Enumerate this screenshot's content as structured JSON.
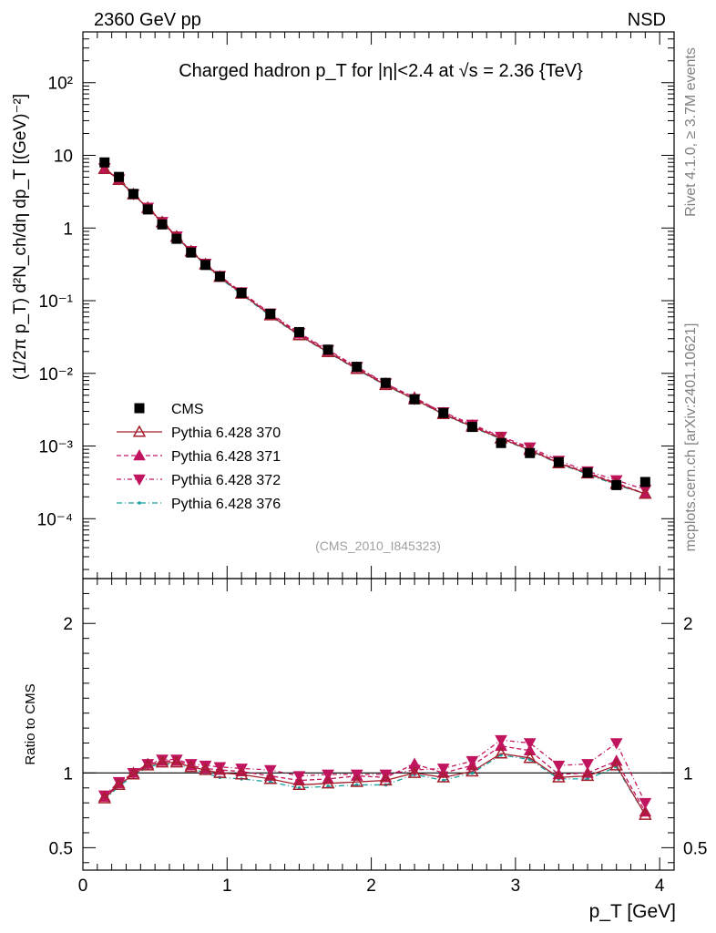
{
  "header": {
    "left": "2360 GeV pp",
    "right": "NSD"
  },
  "side_labels": {
    "rivet": "Rivet 4.1.0, ≥ 3.7M events",
    "mcplots": "mcplots.cern.ch [arXiv:2401.10621]"
  },
  "colors": {
    "CMS": "#000000",
    "p370": "#a31f2c",
    "p371": "#c0155e",
    "p372": "#c0155e",
    "p376": "#17a0a0"
  },
  "chart_data": [
    {
      "type": "line",
      "role": "main",
      "title": "Charged hadron p_T for |η|<2.4 at √s = 2.36 {TeV}",
      "ylabel": "(1/2π p_T) d²N_ch/dη dp_T [(GeV)⁻²]",
      "yscale": "log",
      "ylim": [
        1.5e-05,
        500
      ],
      "xlim": [
        0,
        4.1
      ],
      "yticks": [
        "10⁻⁴",
        "10⁻³",
        "10⁻²",
        "10⁻¹",
        "1",
        "10",
        "10²"
      ],
      "watermark": "(CMS_2010_I845323)",
      "x": [
        0.15,
        0.25,
        0.35,
        0.45,
        0.55,
        0.65,
        0.75,
        0.85,
        0.95,
        1.1,
        1.3,
        1.5,
        1.7,
        1.9,
        2.1,
        2.3,
        2.5,
        2.7,
        2.9,
        3.1,
        3.3,
        3.5,
        3.7,
        3.9
      ],
      "series": [
        {
          "name": "CMS",
          "marker": "square",
          "values": [
            8.0,
            5.05,
            2.95,
            1.8,
            1.12,
            0.71,
            0.46,
            0.31,
            0.215,
            0.128,
            0.066,
            0.037,
            0.0212,
            0.0123,
            0.0074,
            0.0044,
            0.00285,
            0.00183,
            0.0011,
            0.0008,
            0.0006,
            0.00043,
            0.00029,
            0.00032
          ]
        },
        {
          "name": "Pythia 6.428 370",
          "marker": "triangle-up-open",
          "values": [
            6.5,
            4.6,
            2.9,
            1.89,
            1.2,
            0.76,
            0.477,
            0.316,
            0.212,
            0.125,
            0.063,
            0.0335,
            0.0196,
            0.0115,
            0.0069,
            0.0044,
            0.00275,
            0.00185,
            0.00127,
            0.00088,
            0.00058,
            0.00042,
            0.0003,
            0.00022
          ]
        },
        {
          "name": "Pythia 6.428 371",
          "marker": "triangle-up",
          "values": [
            6.6,
            4.65,
            2.92,
            1.9,
            1.21,
            0.765,
            0.479,
            0.319,
            0.216,
            0.127,
            0.0645,
            0.035,
            0.0204,
            0.012,
            0.0072,
            0.00465,
            0.00285,
            0.00192,
            0.0013,
            0.00092,
            0.00059,
            0.00043,
            0.00031,
            0.00022
          ]
        },
        {
          "name": "Pythia 6.428 372",
          "marker": "triangle-down",
          "values": [
            6.7,
            4.7,
            2.93,
            1.91,
            1.22,
            0.77,
            0.485,
            0.324,
            0.22,
            0.131,
            0.067,
            0.036,
            0.021,
            0.0123,
            0.0073,
            0.00445,
            0.00293,
            0.00198,
            0.00135,
            0.00096,
            0.00063,
            0.00045,
            0.00034,
            0.00025
          ]
        },
        {
          "name": "Pythia 6.428 376",
          "marker": "dot",
          "values": [
            6.5,
            4.55,
            2.88,
            1.87,
            1.19,
            0.752,
            0.47,
            0.309,
            0.205,
            0.122,
            0.0615,
            0.033,
            0.0193,
            0.0113,
            0.0068,
            0.00435,
            0.00272,
            0.00182,
            0.00125,
            0.00087,
            0.00057,
            0.00041,
            0.00029,
            0.00022
          ]
        }
      ],
      "legend": [
        "CMS",
        "Pythia 6.428 370",
        "Pythia 6.428 371",
        "Pythia 6.428 372",
        "Pythia 6.428 376"
      ]
    },
    {
      "type": "line",
      "role": "ratio",
      "ylabel": "Ratio to CMS",
      "ylim": [
        0.35,
        2.3
      ],
      "yticks": [
        "0.5",
        "1",
        "2"
      ],
      "xlabel": "p_T [GeV]",
      "xticks": [
        "0",
        "1",
        "2",
        "3",
        "4"
      ],
      "x": [
        0.15,
        0.25,
        0.35,
        0.45,
        0.55,
        0.65,
        0.75,
        0.85,
        0.95,
        1.1,
        1.3,
        1.5,
        1.7,
        1.9,
        2.1,
        2.3,
        2.5,
        2.7,
        2.9,
        3.1,
        3.3,
        3.5,
        3.7,
        3.9
      ],
      "series": [
        {
          "name": "Pythia 6.428 370",
          "values": [
            0.83,
            0.92,
            0.99,
            1.05,
            1.07,
            1.07,
            1.04,
            1.02,
            1.0,
            0.99,
            0.96,
            0.92,
            0.93,
            0.94,
            0.95,
            1.0,
            0.97,
            1.01,
            1.13,
            1.1,
            0.97,
            0.98,
            1.05,
            0.72
          ]
        },
        {
          "name": "Pythia 6.428 371",
          "values": [
            0.84,
            0.93,
            1.0,
            1.06,
            1.08,
            1.08,
            1.05,
            1.03,
            1.02,
            1.01,
            0.98,
            0.95,
            0.96,
            0.98,
            0.97,
            1.06,
            1.0,
            1.05,
            1.18,
            1.15,
            0.99,
            1.0,
            1.08,
            0.74
          ]
        },
        {
          "name": "Pythia 6.428 372",
          "values": [
            0.85,
            0.94,
            1.0,
            1.06,
            1.09,
            1.09,
            1.06,
            1.05,
            1.04,
            1.03,
            1.02,
            0.98,
            0.99,
            0.99,
            0.99,
            1.02,
            1.03,
            1.08,
            1.22,
            1.2,
            1.05,
            1.06,
            1.2,
            0.8
          ]
        },
        {
          "name": "Pythia 6.428 376",
          "values": [
            0.82,
            0.91,
            0.98,
            1.04,
            1.06,
            1.06,
            1.03,
            1.0,
            0.97,
            0.96,
            0.94,
            0.9,
            0.91,
            0.92,
            0.92,
            0.99,
            0.95,
            1.0,
            1.12,
            1.09,
            0.96,
            0.96,
            1.04,
            0.72
          ]
        }
      ]
    }
  ]
}
